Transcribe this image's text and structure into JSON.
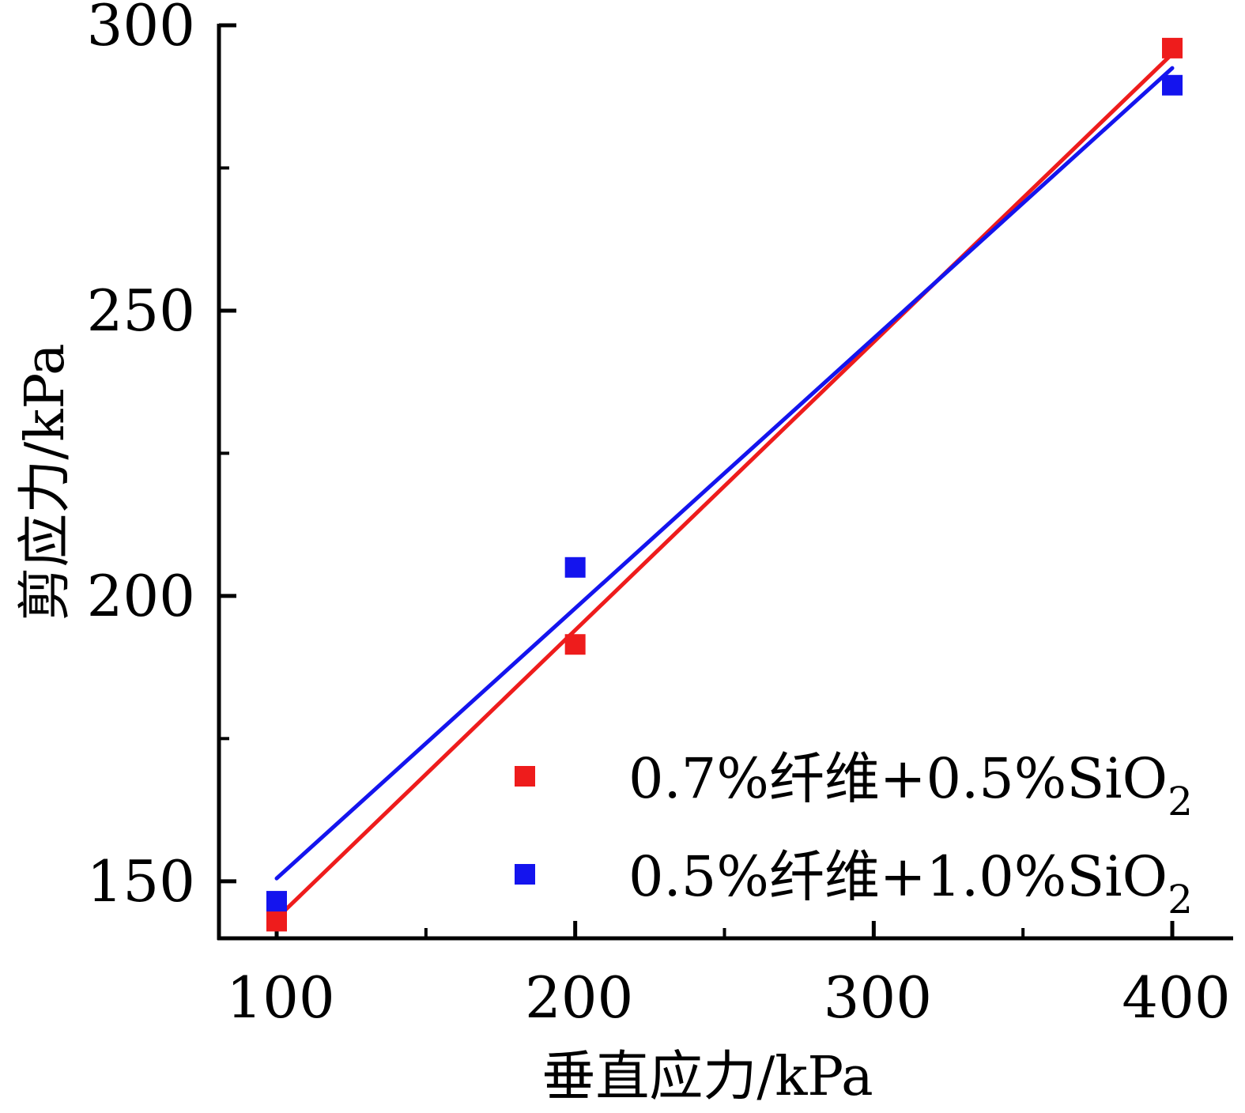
{
  "chart_data": {
    "type": "scatter",
    "title": "",
    "xlabel": "垂直应力/kPa",
    "ylabel": "剪应力/kPa",
    "xlim": [
      80,
      420
    ],
    "ylim": [
      140,
      300
    ],
    "x_ticks": [
      100,
      200,
      300,
      400
    ],
    "x_minor_ticks": [
      150,
      250,
      350
    ],
    "y_ticks": [
      150,
      200,
      250,
      300
    ],
    "y_minor_ticks": [
      175,
      225,
      275
    ],
    "legend_position": "bottom-right",
    "series": [
      {
        "name": "0.7%纤维+0.5%SiO",
        "subscript": "2",
        "color": "#ee1c1c",
        "x": [
          100,
          200,
          400
        ],
        "y": [
          143,
          191.5,
          296
        ],
        "fit": {
          "type": "linear",
          "x": [
            100,
            400
          ],
          "y": [
            143.5,
            295
          ]
        }
      },
      {
        "name": "0.5%纤维+1.0%SiO",
        "subscript": "2",
        "color": "#1414ee",
        "x": [
          100,
          200,
          400
        ],
        "y": [
          146.5,
          205,
          289.5
        ],
        "fit": {
          "type": "linear",
          "x": [
            100,
            400
          ],
          "y": [
            150.5,
            292.5
          ]
        }
      }
    ]
  }
}
